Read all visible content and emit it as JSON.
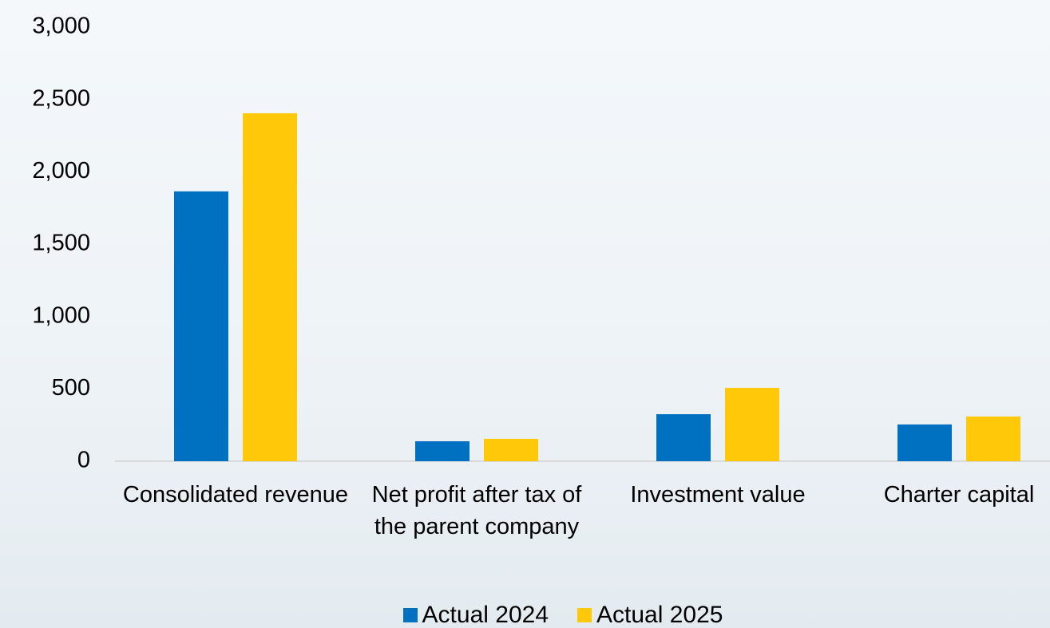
{
  "chart_data": {
    "type": "bar",
    "categories": [
      "Consolidated revenue",
      "Net profit after tax of the parent company",
      "Investment value",
      "Charter capital"
    ],
    "series": [
      {
        "name": "Actual 2024",
        "color": "#0070c0",
        "values": [
          1865,
          138,
          325,
          254
        ]
      },
      {
        "name": "Actual 2025",
        "color": "#ffc90a",
        "values": [
          2405,
          155,
          507,
          309
        ]
      }
    ],
    "ylim": [
      0,
      3000
    ],
    "yticks": [
      0,
      500,
      {
        "value": 1000,
        "label": "1,000"
      },
      {
        "value": 1500,
        "label": "1,500"
      },
      {
        "value": 2000,
        "label": "2,000"
      },
      {
        "value": 2500,
        "label": "2,500"
      },
      {
        "value": 3000,
        "label": "3,000"
      }
    ],
    "grid": false,
    "legend": "bottom"
  }
}
